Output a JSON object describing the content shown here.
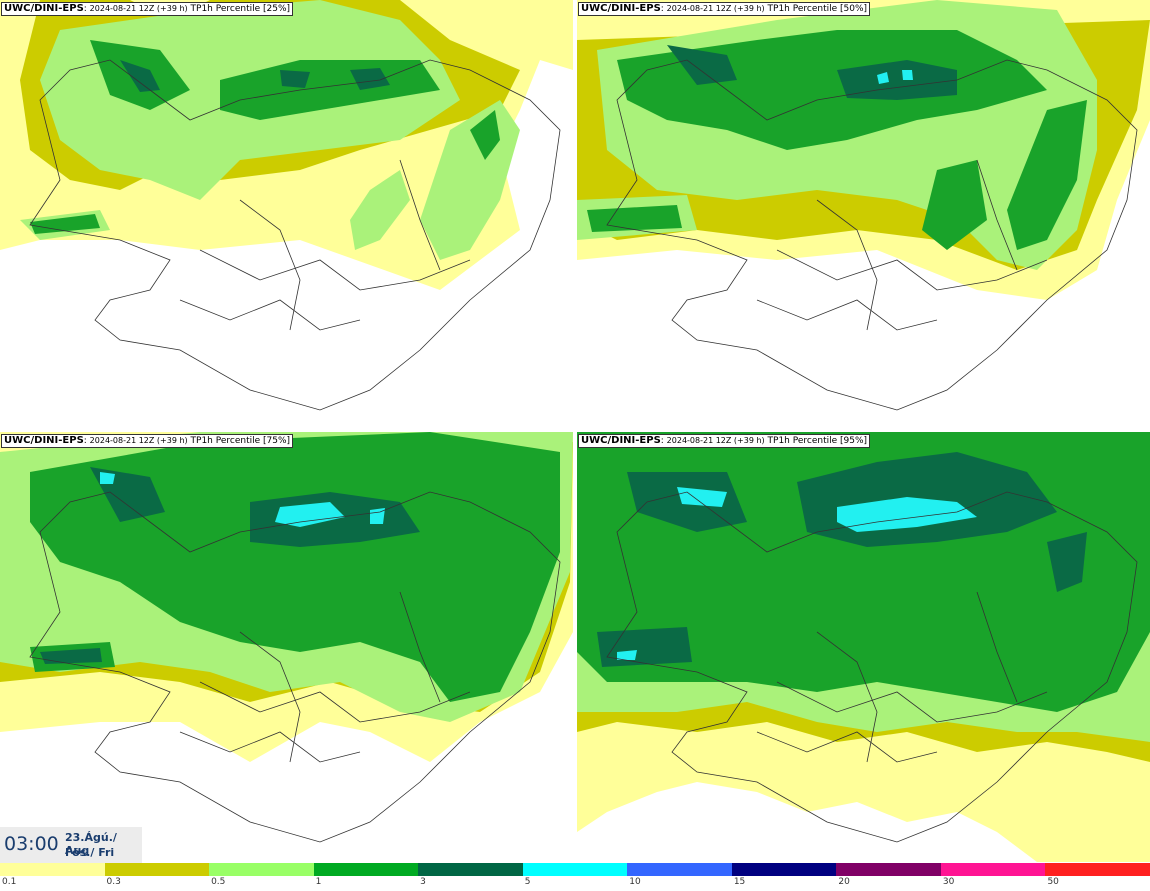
{
  "panels": [
    {
      "source": "UWC/DINI-EPS",
      "run": "2024-08-21 12Z (+39 h)",
      "label": "TP1h Percentile [25%]"
    },
    {
      "source": "UWC/DINI-EPS",
      "run": "2024-08-21 12Z (+39 h)",
      "label": "TP1h Percentile [50%]"
    },
    {
      "source": "UWC/DINI-EPS",
      "run": "2024-08-21 12Z (+39 h)",
      "label": "TP1h Percentile [75%]"
    },
    {
      "source": "UWC/DINI-EPS",
      "run": "2024-08-21 12Z (+39 h)",
      "label": "TP1h Percentile [95%]"
    }
  ],
  "valid_time": {
    "time": "03:00",
    "date": "23.Ágú./ Aug",
    "day": "Fös./ Fri"
  },
  "colorbar": {
    "ticks": [
      "0.1",
      "0.3",
      "0.5",
      "1",
      "3",
      "5",
      "10",
      "15",
      "20",
      "30",
      "50"
    ],
    "colors": [
      "#ffff99",
      "#cccc00",
      "#99ff66",
      "#00aa22",
      "#006644",
      "#00ffff",
      "#3366ff",
      "#000080",
      "#800066",
      "#ff1493",
      "#ff2020"
    ]
  },
  "level_colors": {
    "l1": "#ffff99",
    "l2": "#cccc00",
    "l3": "#aaf27a",
    "l4": "#19a32a",
    "l5": "#0a6a45",
    "l6": "#22f0f0"
  }
}
